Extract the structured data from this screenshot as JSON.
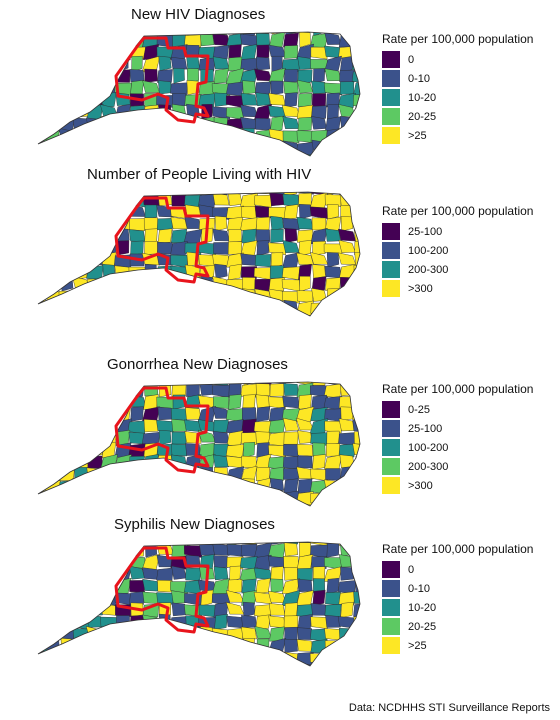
{
  "panels": [
    {
      "title": "New HIV Diagnoses",
      "legend_title": "Rate per 100,000 population",
      "legend": [
        {
          "label": "0",
          "color": "#440154"
        },
        {
          "label": "0-10",
          "color": "#3b528b"
        },
        {
          "label": "10-20",
          "color": "#21908d"
        },
        {
          "label": "20-25",
          "color": "#5dc963"
        },
        {
          "label": ">25",
          "color": "#fde725"
        }
      ]
    },
    {
      "title": "Number of People Living with HIV",
      "legend_title": "Rate per 100,000 population",
      "legend": [
        {
          "label": "25-100",
          "color": "#440154"
        },
        {
          "label": "100-200",
          "color": "#3b528b"
        },
        {
          "label": "200-300",
          "color": "#21908d"
        },
        {
          "label": ">300",
          "color": "#fde725"
        }
      ]
    },
    {
      "title": "Gonorrhea New Diagnoses",
      "legend_title": "Rate per 100,000 population",
      "legend": [
        {
          "label": "0-25",
          "color": "#440154"
        },
        {
          "label": "25-100",
          "color": "#3b528b"
        },
        {
          "label": "100-200",
          "color": "#21908d"
        },
        {
          "label": "200-300",
          "color": "#5dc963"
        },
        {
          "label": ">300",
          "color": "#fde725"
        }
      ]
    },
    {
      "title": "Syphilis New Diagnoses",
      "legend_title": "Rate per 100,000 population",
      "legend": [
        {
          "label": "0",
          "color": "#440154"
        },
        {
          "label": "0-10",
          "color": "#3b528b"
        },
        {
          "label": "10-20",
          "color": "#21908d"
        },
        {
          "label": "20-25",
          "color": "#5dc963"
        },
        {
          "label": ">25",
          "color": "#fde725"
        }
      ]
    }
  ],
  "highlight_color": "#e8141c",
  "footer": "Data: NCDHHS STI Surveillance Reports"
}
